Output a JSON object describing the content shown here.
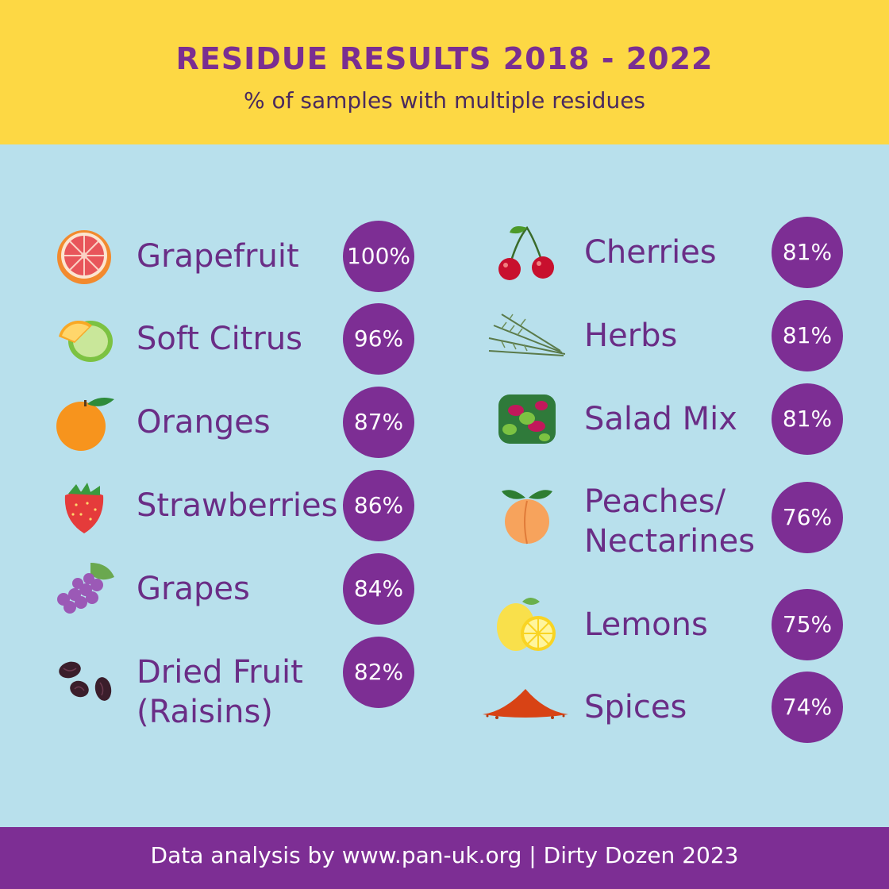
{
  "header": {
    "title": "RESIDUE RESULTS 2018 - 2022",
    "subtitle": "% of samples with multiple residues"
  },
  "chart_data": {
    "type": "table",
    "title": "RESIDUE RESULTS 2018 - 2022",
    "subtitle": "% of samples with multiple residues",
    "unit": "%",
    "items": [
      {
        "name": "Grapefruit",
        "value": 100,
        "label": "100%",
        "icon": "grapefruit-icon"
      },
      {
        "name": "Soft Citrus",
        "value": 96,
        "label": "96%",
        "icon": "soft-citrus-icon"
      },
      {
        "name": "Oranges",
        "value": 87,
        "label": "87%",
        "icon": "orange-icon"
      },
      {
        "name": "Strawberries",
        "value": 86,
        "label": "86%",
        "icon": "strawberry-icon"
      },
      {
        "name": "Grapes",
        "value": 84,
        "label": "84%",
        "icon": "grapes-icon"
      },
      {
        "name": "Dried Fruit (Raisins)",
        "value": 82,
        "label": "82%",
        "icon": "raisins-icon"
      },
      {
        "name": "Cherries",
        "value": 81,
        "label": "81%",
        "icon": "cherries-icon"
      },
      {
        "name": "Herbs",
        "value": 81,
        "label": "81%",
        "icon": "herbs-icon"
      },
      {
        "name": "Salad Mix",
        "value": 81,
        "label": "81%",
        "icon": "salad-icon"
      },
      {
        "name": "Peaches/ Nectarines",
        "value": 76,
        "label": "76%",
        "icon": "peach-icon"
      },
      {
        "name": "Lemons",
        "value": 75,
        "label": "75%",
        "icon": "lemon-icon"
      },
      {
        "name": "Spices",
        "value": 74,
        "label": "74%",
        "icon": "spices-icon"
      }
    ]
  },
  "footer": {
    "text": "Data analysis by www.pan-uk.org | Dirty Dozen 2023"
  },
  "colors": {
    "header_bg": "#fdd844",
    "body_bg": "#b8e0ec",
    "accent_purple": "#7d2e94",
    "label_purple": "#6a2d86"
  }
}
